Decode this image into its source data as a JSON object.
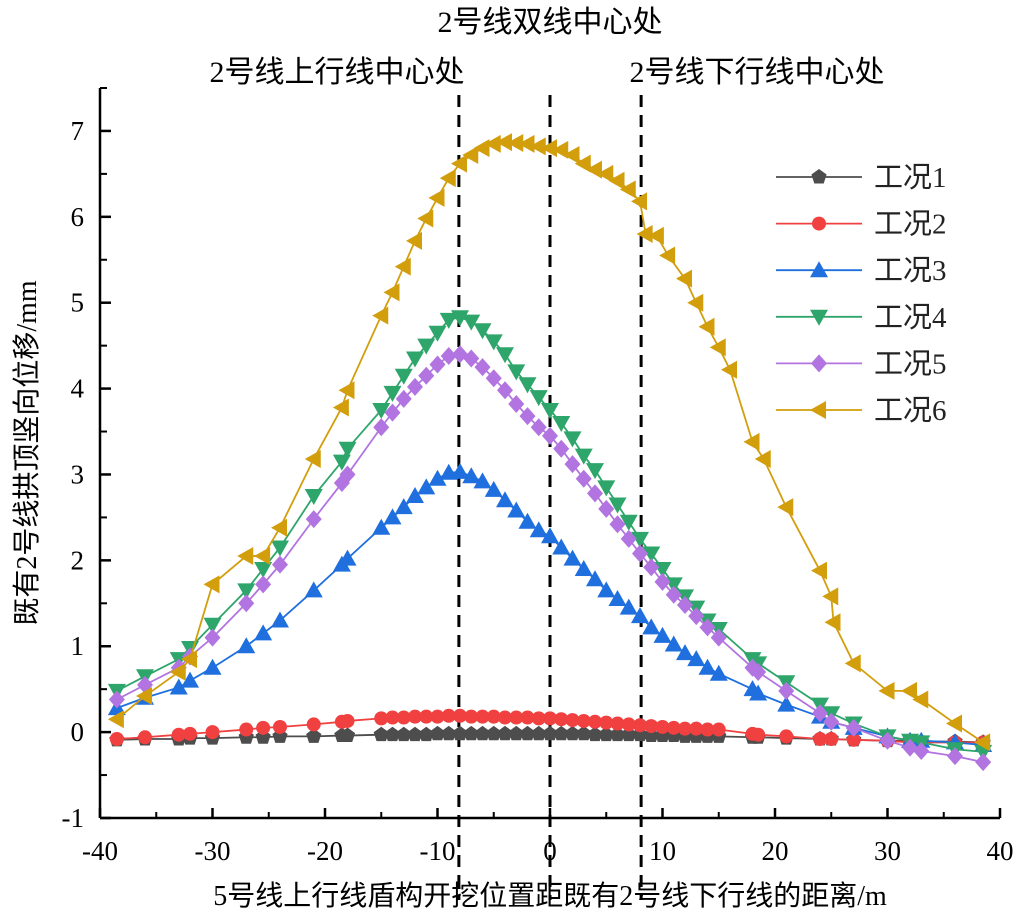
{
  "chart_data": {
    "type": "line",
    "xlabel": "5号线上行线盾构开挖位置距既有2号线下行线的距离/m",
    "ylabel": "既有2号线拱顶竖向位移/mm",
    "xlim": [
      -40,
      40
    ],
    "ylim": [
      -1,
      7.5
    ],
    "xticks": [
      -40,
      -30,
      -20,
      -10,
      0,
      10,
      20,
      30,
      40
    ],
    "yticks": [
      -1,
      0,
      1,
      2,
      3,
      4,
      5,
      6,
      7
    ],
    "grid": false,
    "legend_position": "top-right",
    "annotations": [
      {
        "text": "2号线双线中心处",
        "x": 0
      },
      {
        "text": "2号线上行线中心处",
        "x": -8.1
      },
      {
        "text": "2号线下行线中心处",
        "x": 8.1
      }
    ],
    "x": [
      -38.5,
      -36,
      -33,
      -32,
      -30,
      -27,
      -25.5,
      -24,
      -21,
      -18.5,
      -18,
      -15,
      -14,
      -13,
      -12,
      -11,
      -10,
      -9,
      -8,
      -7,
      -6,
      -5,
      -4,
      -3,
      -2,
      -1,
      0,
      1,
      2,
      3,
      4,
      5,
      6,
      7,
      8,
      9,
      10,
      11,
      12,
      13,
      14,
      15,
      18,
      18.5,
      21,
      24,
      25,
      27,
      30,
      32,
      33,
      36,
      38.5
    ],
    "series": [
      {
        "name": "工况1",
        "color": "#4d4d4d",
        "marker": "pentagon",
        "values": [
          -0.09,
          -0.08,
          -0.08,
          -0.07,
          -0.07,
          -0.06,
          -0.06,
          -0.05,
          -0.05,
          -0.04,
          -0.04,
          -0.03,
          -0.03,
          -0.03,
          -0.03,
          -0.03,
          -0.02,
          -0.02,
          -0.02,
          -0.02,
          -0.02,
          -0.02,
          -0.02,
          -0.02,
          -0.02,
          -0.02,
          -0.02,
          -0.02,
          -0.02,
          -0.02,
          -0.03,
          -0.03,
          -0.03,
          -0.03,
          -0.03,
          -0.04,
          -0.04,
          -0.04,
          -0.05,
          -0.05,
          -0.05,
          -0.05,
          -0.06,
          -0.06,
          -0.07,
          -0.08,
          -0.08,
          -0.09,
          -0.1,
          -0.1,
          -0.11,
          -0.11,
          -0.12
        ]
      },
      {
        "name": "工况2",
        "color": "#f04040",
        "marker": "circle",
        "values": [
          -0.08,
          -0.06,
          -0.03,
          -0.02,
          0,
          0.03,
          0.05,
          0.06,
          0.09,
          0.12,
          0.13,
          0.16,
          0.17,
          0.17,
          0.18,
          0.18,
          0.18,
          0.19,
          0.19,
          0.18,
          0.18,
          0.18,
          0.17,
          0.17,
          0.17,
          0.16,
          0.16,
          0.15,
          0.14,
          0.13,
          0.12,
          0.11,
          0.1,
          0.09,
          0.08,
          0.07,
          0.06,
          0.05,
          0.04,
          0.04,
          0.03,
          0.03,
          -0.02,
          -0.03,
          -0.05,
          -0.08,
          -0.08,
          -0.09,
          -0.1,
          -0.12,
          -0.12,
          -0.12,
          -0.12
        ]
      },
      {
        "name": "工况3",
        "color": "#1f6fde",
        "marker": "triangle-up",
        "values": [
          0.28,
          0.4,
          0.52,
          0.6,
          0.75,
          1.0,
          1.15,
          1.3,
          1.65,
          1.95,
          2.02,
          2.38,
          2.5,
          2.62,
          2.75,
          2.85,
          2.95,
          3.02,
          3.03,
          2.98,
          2.92,
          2.82,
          2.7,
          2.58,
          2.45,
          2.35,
          2.28,
          2.15,
          2.02,
          1.9,
          1.78,
          1.65,
          1.55,
          1.45,
          1.35,
          1.22,
          1.12,
          1.02,
          0.92,
          0.85,
          0.75,
          0.68,
          0.5,
          0.45,
          0.32,
          0.18,
          0.12,
          0.05,
          -0.05,
          -0.1,
          -0.1,
          -0.12,
          -0.15
        ]
      },
      {
        "name": "工况4",
        "color": "#2ea56a",
        "marker": "triangle-down",
        "values": [
          0.48,
          0.65,
          0.85,
          0.98,
          1.25,
          1.65,
          1.9,
          2.15,
          2.75,
          3.15,
          3.3,
          3.75,
          3.95,
          4.15,
          4.35,
          4.5,
          4.65,
          4.8,
          4.83,
          4.78,
          4.68,
          4.55,
          4.4,
          4.2,
          4.05,
          3.9,
          3.75,
          3.6,
          3.42,
          3.22,
          3.05,
          2.85,
          2.65,
          2.45,
          2.25,
          2.08,
          1.9,
          1.72,
          1.58,
          1.45,
          1.3,
          1.2,
          0.85,
          0.8,
          0.58,
          0.32,
          0.22,
          0.1,
          -0.05,
          -0.1,
          -0.12,
          -0.2,
          -0.23
        ]
      },
      {
        "name": "工况5",
        "color": "#b274e0",
        "marker": "diamond",
        "values": [
          0.38,
          0.55,
          0.75,
          0.88,
          1.1,
          1.5,
          1.72,
          1.95,
          2.48,
          2.9,
          3.0,
          3.55,
          3.72,
          3.88,
          4.02,
          4.15,
          4.28,
          4.38,
          4.4,
          4.35,
          4.25,
          4.12,
          3.98,
          3.82,
          3.68,
          3.55,
          3.45,
          3.3,
          3.12,
          2.95,
          2.78,
          2.6,
          2.42,
          2.25,
          2.08,
          1.92,
          1.75,
          1.6,
          1.48,
          1.35,
          1.22,
          1.1,
          0.75,
          0.7,
          0.48,
          0.22,
          0.12,
          0.05,
          -0.1,
          -0.18,
          -0.22,
          -0.28,
          -0.35
        ]
      },
      {
        "name": "工况6",
        "color": "#d39e0c",
        "marker": "triangle-left",
        "x": [
          -38.5,
          -36,
          -33,
          -32,
          -30,
          -27,
          -25.5,
          -24,
          -21,
          -18.5,
          -18,
          -15,
          -14,
          -13,
          -12,
          -11,
          -10,
          -9,
          -8,
          -7,
          -6,
          -5,
          -4,
          -3,
          -2,
          -1,
          0,
          1,
          2,
          3,
          4,
          5,
          6,
          7,
          8,
          8.5,
          9.5,
          10.5,
          12,
          13,
          14,
          15,
          16,
          18,
          19,
          21,
          24,
          25,
          25.2,
          27,
          30,
          32,
          33,
          36,
          38.5
        ],
        "values": [
          0.15,
          0.42,
          0.7,
          0.85,
          1.72,
          2.05,
          2.05,
          2.38,
          3.18,
          3.78,
          3.98,
          4.85,
          5.12,
          5.42,
          5.72,
          5.98,
          6.22,
          6.45,
          6.62,
          6.72,
          6.8,
          6.85,
          6.87,
          6.86,
          6.85,
          6.82,
          6.8,
          6.78,
          6.72,
          6.62,
          6.55,
          6.5,
          6.42,
          6.32,
          6.18,
          5.8,
          5.78,
          5.55,
          5.28,
          5.0,
          4.72,
          4.48,
          4.22,
          3.38,
          3.18,
          2.62,
          1.88,
          1.58,
          1.28,
          0.8,
          0.48,
          0.48,
          0.38,
          0.1,
          -0.12
        ]
      }
    ]
  }
}
